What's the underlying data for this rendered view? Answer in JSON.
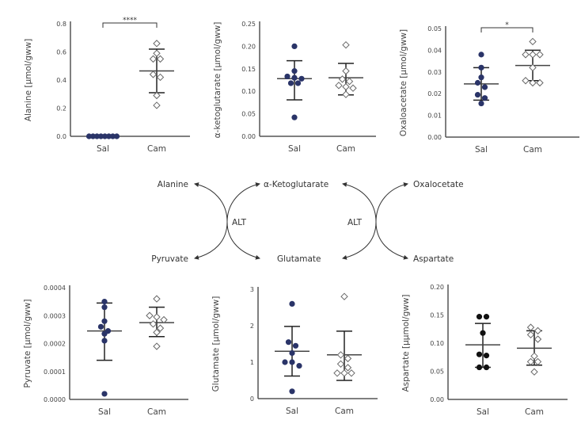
{
  "colors": {
    "saline": "#2a3468",
    "aspartate_saline": "#111111",
    "cam_fill": "#ffffff",
    "cam_stroke": "#666666",
    "axis": "#555555",
    "errorbar": "#222222"
  },
  "chart_data": [
    {
      "type": "scatter",
      "id": "alanine",
      "ylabel": "Alanine [µmol/gww]",
      "categories": [
        "Sal",
        "Cam"
      ],
      "ylim": [
        0,
        0.8
      ],
      "yticks": [
        "0.0",
        "0.2",
        "0.4",
        "0.6",
        "0.8"
      ],
      "ytick_values": [
        0,
        0.2,
        0.4,
        0.6,
        0.8
      ],
      "significance": "****",
      "series": [
        {
          "name": "Sal",
          "values": [
            0,
            0,
            0,
            0,
            0,
            0,
            0,
            0
          ],
          "mean": 0.0,
          "err": [
            0.0,
            0.0
          ]
        },
        {
          "name": "Cam",
          "values": [
            0.66,
            0.59,
            0.55,
            0.55,
            0.44,
            0.42,
            0.29,
            0.22
          ],
          "mean": 0.465,
          "err": [
            0.31,
            0.62
          ]
        }
      ]
    },
    {
      "type": "scatter",
      "id": "aketoglutarate",
      "ylabel": "α-ketoglutarate [µmol/gww]",
      "categories": [
        "Sal",
        "Cam"
      ],
      "ylim": [
        0,
        0.25
      ],
      "yticks": [
        "0.00",
        "0.05",
        "0.10",
        "0.15",
        "0.20",
        "0.25"
      ],
      "ytick_values": [
        0,
        0.05,
        0.1,
        0.15,
        0.2,
        0.25
      ],
      "significance": "",
      "series": [
        {
          "name": "Sal",
          "values": [
            0.2,
            0.145,
            0.133,
            0.13,
            0.128,
            0.118,
            0.118,
            0.042
          ],
          "mean": 0.128,
          "err": [
            0.081,
            0.168
          ]
        },
        {
          "name": "Cam",
          "values": [
            0.203,
            0.145,
            0.127,
            0.122,
            0.113,
            0.11,
            0.107,
            0.093
          ],
          "mean": 0.13,
          "err": [
            0.092,
            0.162
          ]
        }
      ]
    },
    {
      "type": "scatter",
      "id": "oxaloacetate",
      "ylabel": "Oxaloacetate [µmol/gww]",
      "categories": [
        "Sal",
        "Cam"
      ],
      "ylim": [
        0,
        0.05
      ],
      "yticks": [
        "0.00",
        "0.01",
        "0.02",
        "0.03",
        "0.04",
        "0.05"
      ],
      "ytick_values": [
        0,
        0.01,
        0.02,
        0.03,
        0.04,
        0.05
      ],
      "significance": "*",
      "series": [
        {
          "name": "Sal",
          "values": [
            0.038,
            0.032,
            0.0275,
            0.025,
            0.023,
            0.0195,
            0.018,
            0.0155
          ],
          "mean": 0.0245,
          "err": [
            0.017,
            0.032
          ]
        },
        {
          "name": "Cam",
          "values": [
            0.044,
            0.038,
            0.038,
            0.038,
            0.032,
            0.026,
            0.025,
            0.025
          ],
          "mean": 0.033,
          "err": [
            0.026,
            0.04
          ]
        }
      ]
    },
    {
      "type": "scatter",
      "id": "pyruvate",
      "ylabel": "Pyruvate [µmol/gww]",
      "categories": [
        "Sal",
        "Cam"
      ],
      "ylim": [
        0,
        0.0004
      ],
      "yticks": [
        "0.0000",
        "0.0001",
        "0.0002",
        "0.0003",
        "0.0004"
      ],
      "ytick_values": [
        0,
        0.0001,
        0.0002,
        0.0003,
        0.0004
      ],
      "significance": "",
      "series": [
        {
          "name": "Sal",
          "values": [
            0.00035,
            0.00033,
            0.00028,
            0.00026,
            0.000245,
            0.000235,
            0.00021,
            2e-05
          ],
          "mean": 0.000245,
          "err": [
            0.00014,
            0.000345
          ]
        },
        {
          "name": "Cam",
          "values": [
            0.00036,
            0.0003,
            0.000295,
            0.000285,
            0.00027,
            0.000255,
            0.00024,
            0.00019
          ],
          "mean": 0.000275,
          "err": [
            0.000225,
            0.00033
          ]
        }
      ]
    },
    {
      "type": "scatter",
      "id": "glutamate",
      "ylabel": "Glutamate [µmol/gww]",
      "categories": [
        "Sal",
        "Cam"
      ],
      "ylim": [
        0,
        3
      ],
      "yticks": [
        "0",
        "1",
        "2",
        "3"
      ],
      "ytick_values": [
        0,
        1,
        2,
        3
      ],
      "significance": "",
      "series": [
        {
          "name": "Sal",
          "values": [
            2.6,
            1.55,
            1.45,
            1.25,
            1.0,
            1.0,
            0.9,
            0.2
          ],
          "mean": 1.3,
          "err": [
            0.62,
            1.98
          ]
        },
        {
          "name": "Cam",
          "values": [
            2.8,
            1.2,
            1.1,
            0.95,
            0.85,
            0.7,
            0.7,
            0.7
          ],
          "mean": 1.2,
          "err": [
            0.5,
            1.85
          ]
        }
      ]
    },
    {
      "type": "scatter",
      "id": "aspartate",
      "ylabel": "Aspartate [µµmol/gww]",
      "categories": [
        "Sal",
        "Cam"
      ],
      "ylim": [
        0,
        0.2
      ],
      "yticks": [
        "0.00",
        "0.05",
        "0.10",
        "0.15",
        "0.20"
      ],
      "ytick_values": [
        0,
        0.05,
        0.1,
        0.15,
        0.2
      ],
      "significance": "",
      "series": [
        {
          "name": "Sal",
          "values": [
            0.147,
            0.147,
            0.118,
            0.08,
            0.078,
            0.057,
            0.057
          ],
          "mean": 0.097,
          "err": [
            0.057,
            0.135
          ]
        },
        {
          "name": "Cam",
          "values": [
            0.128,
            0.122,
            0.115,
            0.107,
            0.077,
            0.067,
            0.067,
            0.049
          ],
          "mean": 0.091,
          "err": [
            0.061,
            0.122
          ]
        }
      ]
    }
  ],
  "diagram": {
    "alanine": "Alanine",
    "aketoglutarate": "α-Ketoglutarate",
    "oxalocetate": "Oxalocetate",
    "alt_left": "ALT",
    "alt_right": "ALT",
    "pyruvate": "Pyruvate",
    "glutamate": "Glutamate",
    "aspartate": "Aspartate"
  }
}
